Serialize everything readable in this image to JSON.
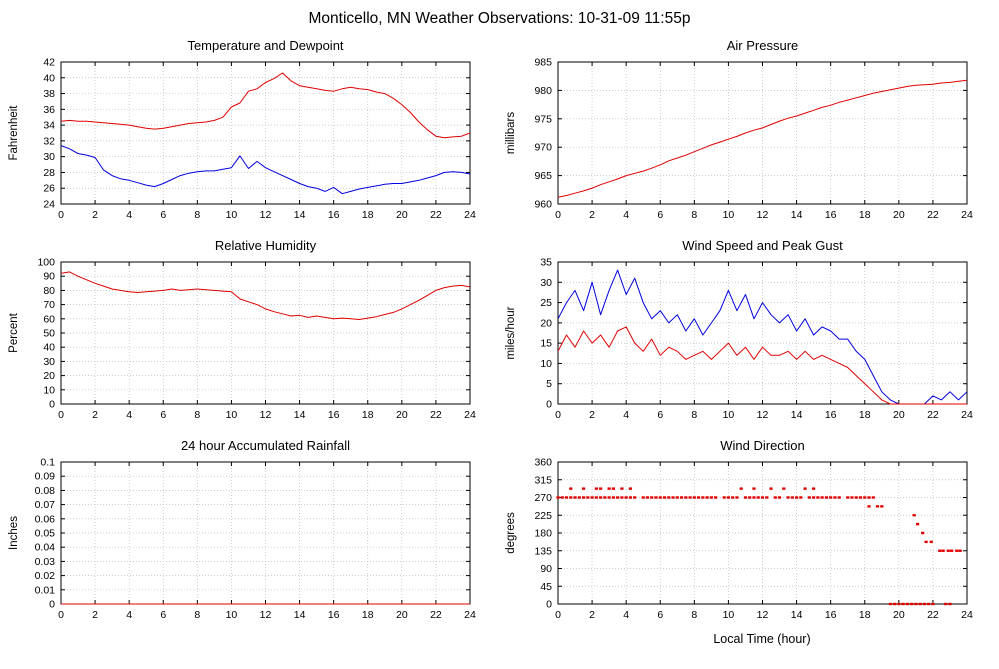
{
  "page": {
    "title": "Monticello, MN Weather Observations: 10-31-09 11:55p"
  },
  "colors": {
    "red": "#e00000",
    "blue": "#0000e0",
    "grid": "#bbbbbb",
    "axis": "#000000"
  },
  "chart_data": [
    {
      "id": "temperature-dewpoint",
      "type": "line",
      "title": "Temperature and Dewpoint",
      "ylabel": "Fahrenheit",
      "ylim": [
        24,
        42
      ],
      "ytick_step": 2,
      "xlim": [
        0,
        24
      ],
      "xtick_step": 2,
      "x_step": 0.5,
      "series": [
        {
          "name": "temperature",
          "color": "red",
          "values": [
            34.5,
            34.6,
            34.5,
            34.5,
            34.4,
            34.3,
            34.2,
            34.1,
            34.0,
            33.8,
            33.6,
            33.5,
            33.6,
            33.8,
            34.0,
            34.2,
            34.3,
            34.4,
            34.6,
            35.0,
            36.3,
            36.8,
            38.3,
            38.6,
            39.4,
            39.9,
            40.6,
            39.6,
            39.0,
            38.8,
            38.6,
            38.4,
            38.3,
            38.6,
            38.8,
            38.6,
            38.5,
            38.2,
            38.0,
            37.4,
            36.6,
            35.6,
            34.4,
            33.4,
            32.6,
            32.4,
            32.5,
            32.6,
            33.0
          ]
        },
        {
          "name": "dewpoint",
          "color": "blue",
          "values": [
            31.4,
            31.0,
            30.4,
            30.2,
            29.9,
            28.3,
            27.6,
            27.2,
            27.0,
            26.7,
            26.4,
            26.2,
            26.6,
            27.1,
            27.6,
            27.9,
            28.1,
            28.2,
            28.2,
            28.4,
            28.6,
            30.1,
            28.5,
            29.4,
            28.6,
            28.1,
            27.6,
            27.1,
            26.6,
            26.2,
            26.0,
            25.6,
            26.1,
            25.3,
            25.6,
            25.9,
            26.1,
            26.3,
            26.5,
            26.6,
            26.6,
            26.8,
            27.0,
            27.3,
            27.6,
            28.0,
            28.1,
            28.0,
            27.8
          ]
        }
      ]
    },
    {
      "id": "air-pressure",
      "type": "line",
      "title": "Air Pressure",
      "ylabel": "millibars",
      "ylim": [
        960,
        985
      ],
      "ytick_step": 5,
      "xlim": [
        0,
        24
      ],
      "xtick_step": 2,
      "x_step": 0.5,
      "series": [
        {
          "name": "pressure",
          "color": "red",
          "values": [
            961.2,
            961.5,
            961.9,
            962.3,
            962.8,
            963.4,
            963.9,
            964.4,
            965.0,
            965.4,
            965.8,
            966.3,
            966.9,
            967.6,
            968.1,
            968.6,
            969.2,
            969.8,
            970.4,
            970.9,
            971.4,
            971.9,
            972.5,
            973.0,
            973.4,
            974.0,
            974.6,
            975.1,
            975.5,
            976.0,
            976.5,
            977.0,
            977.4,
            977.9,
            978.3,
            978.7,
            979.1,
            979.5,
            979.8,
            980.1,
            980.4,
            980.7,
            980.9,
            981.0,
            981.1,
            981.3,
            981.4,
            981.6,
            981.8
          ]
        }
      ]
    },
    {
      "id": "relative-humidity",
      "type": "line",
      "title": "Relative Humidity",
      "ylabel": "Percent",
      "ylim": [
        0,
        100
      ],
      "ytick_step": 10,
      "xlim": [
        0,
        24
      ],
      "xtick_step": 2,
      "x_step": 0.5,
      "series": [
        {
          "name": "humidity",
          "color": "red",
          "values": [
            92,
            93,
            90,
            87.5,
            85,
            83,
            81,
            80,
            79,
            78.5,
            79,
            79.5,
            80,
            81,
            80,
            80.5,
            81,
            80.5,
            80,
            79.5,
            79,
            74,
            72,
            70,
            67,
            65,
            63.5,
            62,
            62.5,
            61,
            62,
            61,
            60,
            60.5,
            60,
            59.5,
            60.5,
            61.5,
            63,
            64.5,
            67,
            70,
            73,
            76.5,
            80,
            82,
            83,
            83.5,
            82.5
          ]
        }
      ]
    },
    {
      "id": "wind-speed-gust",
      "type": "line",
      "title": "Wind Speed and Peak Gust",
      "ylabel": "miles/hour",
      "ylim": [
        0,
        35
      ],
      "ytick_step": 5,
      "xlim": [
        0,
        24
      ],
      "xtick_step": 2,
      "x_step": 0.5,
      "series": [
        {
          "name": "peak-gust",
          "color": "blue",
          "values": [
            21,
            25,
            28,
            23,
            30,
            22,
            28,
            33,
            27,
            31,
            25,
            21,
            23,
            20,
            22,
            18,
            21,
            17,
            20,
            23,
            28,
            23,
            27,
            21,
            25,
            22,
            20,
            22,
            18,
            21,
            17,
            19,
            18,
            16,
            16,
            13,
            11,
            7,
            3,
            1,
            0,
            0,
            0,
            0,
            2,
            1,
            3,
            1,
            3
          ]
        },
        {
          "name": "wind-speed",
          "color": "red",
          "values": [
            13,
            17,
            14,
            18,
            15,
            17,
            14,
            18,
            19,
            15,
            13,
            16,
            12,
            14,
            13,
            11,
            12,
            13,
            11,
            13,
            15,
            12,
            14,
            11,
            14,
            12,
            12,
            13,
            11,
            13,
            11,
            12,
            11,
            10,
            9,
            7,
            5,
            3,
            1,
            0,
            0,
            0,
            0,
            0,
            0,
            0,
            0,
            0,
            0
          ]
        }
      ]
    },
    {
      "id": "accumulated-rainfall",
      "type": "line",
      "title": "24 hour Accumulated Rainfall",
      "ylabel": "Inches",
      "ylim": [
        0,
        0.1
      ],
      "ytick_step": 0.01,
      "xlim": [
        0,
        24
      ],
      "xtick_step": 2,
      "x_step": 24,
      "series": [
        {
          "name": "rainfall",
          "color": "red",
          "values": [
            0,
            0
          ]
        }
      ]
    },
    {
      "id": "wind-direction",
      "type": "scatter",
      "title": "Wind Direction",
      "ylabel": "degrees",
      "xlabel": "Local Time (hour)",
      "ylim": [
        0,
        360
      ],
      "ytick_step": 45,
      "xlim": [
        0,
        24
      ],
      "xtick_step": 2,
      "series": [
        {
          "name": "wind-direction",
          "color": "red",
          "points": [
            [
              0,
              270
            ],
            [
              0.25,
              270
            ],
            [
              0.5,
              270
            ],
            [
              0.75,
              270
            ],
            [
              1,
              270
            ],
            [
              1.25,
              270
            ],
            [
              1.5,
              270
            ],
            [
              1.75,
              270
            ],
            [
              2,
              270
            ],
            [
              2.25,
              270
            ],
            [
              2.5,
              270
            ],
            [
              2.75,
              270
            ],
            [
              3,
              270
            ],
            [
              3.25,
              270
            ],
            [
              3.5,
              270
            ],
            [
              3.75,
              270
            ],
            [
              4,
              270
            ],
            [
              4.25,
              270
            ],
            [
              4.5,
              270
            ],
            [
              5,
              270
            ],
            [
              5.25,
              270
            ],
            [
              5.5,
              270
            ],
            [
              5.75,
              270
            ],
            [
              6,
              270
            ],
            [
              6.25,
              270
            ],
            [
              6.5,
              270
            ],
            [
              6.75,
              270
            ],
            [
              7,
              270
            ],
            [
              7.25,
              270
            ],
            [
              7.5,
              270
            ],
            [
              7.75,
              270
            ],
            [
              8,
              270
            ],
            [
              8.25,
              270
            ],
            [
              8.5,
              270
            ],
            [
              8.75,
              270
            ],
            [
              9,
              270
            ],
            [
              9.25,
              270
            ],
            [
              9.75,
              270
            ],
            [
              10,
              270
            ],
            [
              10.25,
              270
            ],
            [
              10.5,
              270
            ],
            [
              11,
              270
            ],
            [
              11.25,
              270
            ],
            [
              11.5,
              270
            ],
            [
              11.75,
              270
            ],
            [
              12,
              270
            ],
            [
              12.25,
              270
            ],
            [
              12.75,
              270
            ],
            [
              13,
              270
            ],
            [
              13.5,
              270
            ],
            [
              13.75,
              270
            ],
            [
              14,
              270
            ],
            [
              14.25,
              270
            ],
            [
              14.75,
              270
            ],
            [
              15,
              270
            ],
            [
              15.25,
              270
            ],
            [
              15.5,
              270
            ],
            [
              15.75,
              270
            ],
            [
              16,
              270
            ],
            [
              16.25,
              270
            ],
            [
              16.5,
              270
            ],
            [
              17,
              270
            ],
            [
              17.25,
              270
            ],
            [
              17.5,
              270
            ],
            [
              17.75,
              270
            ],
            [
              18,
              270
            ],
            [
              18.25,
              270
            ],
            [
              18.5,
              270
            ],
            [
              0.75,
              292.5
            ],
            [
              1.5,
              292.5
            ],
            [
              2.25,
              292.5
            ],
            [
              2.5,
              292.5
            ],
            [
              3,
              292.5
            ],
            [
              3.25,
              292.5
            ],
            [
              3.75,
              292.5
            ],
            [
              4.25,
              292.5
            ],
            [
              10.75,
              292.5
            ],
            [
              11.5,
              292.5
            ],
            [
              12.5,
              292.5
            ],
            [
              13.25,
              292.5
            ],
            [
              14.5,
              292.5
            ],
            [
              15,
              292.5
            ],
            [
              18.25,
              247.5
            ],
            [
              18.75,
              247.5
            ],
            [
              19,
              247.5
            ],
            [
              19.5,
              0
            ],
            [
              19.75,
              0
            ],
            [
              20,
              0
            ],
            [
              20.25,
              0
            ],
            [
              20.5,
              0
            ],
            [
              20.75,
              0
            ],
            [
              21,
              0
            ],
            [
              21.25,
              0
            ],
            [
              21.5,
              0
            ],
            [
              21.75,
              0
            ],
            [
              22,
              0
            ],
            [
              22.75,
              0
            ],
            [
              23,
              0
            ],
            [
              20.9,
              225
            ],
            [
              21.1,
              202.5
            ],
            [
              21.4,
              180
            ],
            [
              21.6,
              157.5
            ],
            [
              21.9,
              157.5
            ],
            [
              22.4,
              135
            ],
            [
              22.6,
              135
            ],
            [
              22.9,
              135
            ],
            [
              23.1,
              135
            ],
            [
              23.4,
              135
            ],
            [
              23.6,
              135
            ]
          ]
        }
      ]
    }
  ]
}
